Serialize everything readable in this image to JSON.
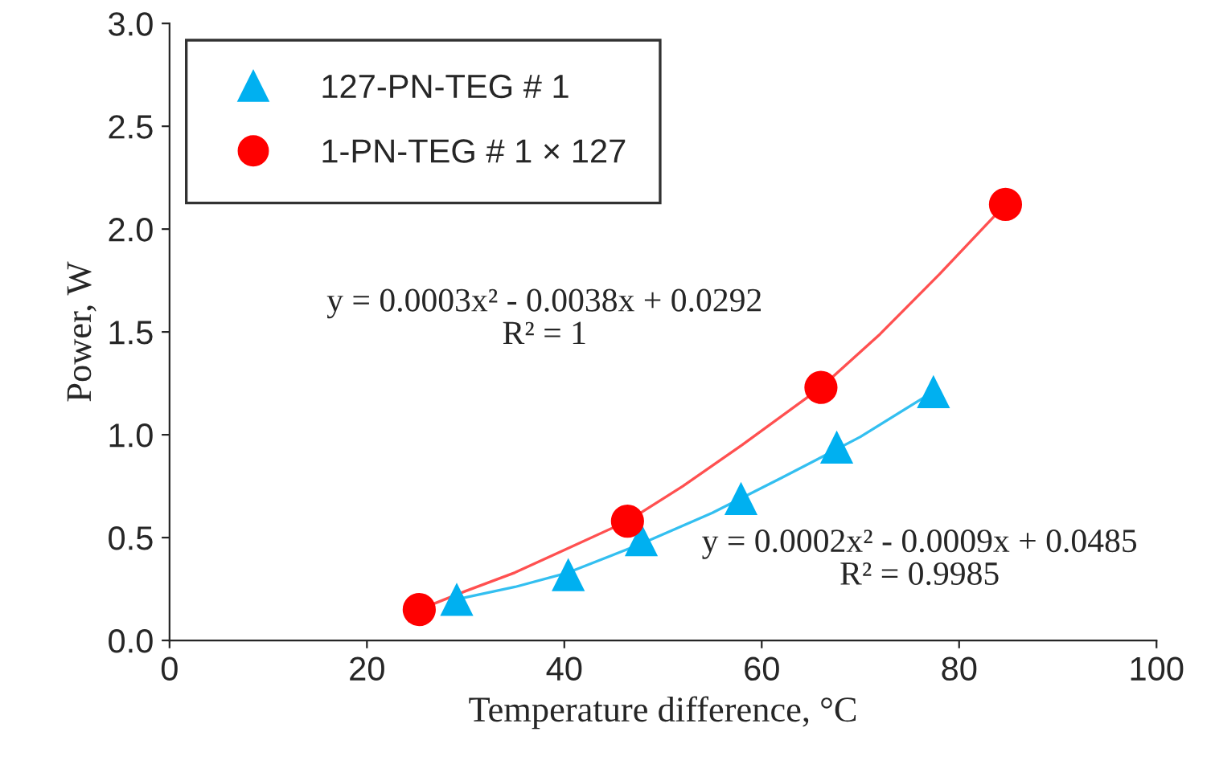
{
  "chart_data": {
    "type": "scatter",
    "xlabel": "Temperature difference, °C",
    "ylabel": "Power, W",
    "xlim": [
      0,
      100
    ],
    "xticks": [
      0,
      20,
      40,
      60,
      80,
      100
    ],
    "ylim": [
      0,
      3.0
    ],
    "yticks": [
      {
        "value": 0,
        "label": "0.0"
      },
      {
        "value": 0.5,
        "label": "0.5"
      },
      {
        "value": 1.0,
        "label": "1.0"
      },
      {
        "value": 1.5,
        "label": "1.5"
      },
      {
        "value": 2.0,
        "label": "2.0"
      },
      {
        "value": 2.5,
        "label": "2.5"
      },
      {
        "value": 3.0,
        "label": "3.0"
      }
    ],
    "grid": false,
    "legend": "top left",
    "series": [
      {
        "name": "127-PN-TEG # 1",
        "marker": "triangle",
        "color": "#00b0f0",
        "x": [
          29.1,
          40.4,
          47.8,
          57.9,
          67.6,
          77.4
        ],
        "values": [
          0.2,
          0.32,
          0.49,
          0.69,
          0.94,
          1.21
        ]
      },
      {
        "name": "1-PN-TEG # 1 × 127",
        "marker": "circle",
        "color": "#ff0000",
        "x": [
          25.3,
          46.4,
          66.0,
          84.7
        ],
        "values": [
          0.15,
          0.58,
          1.23,
          2.12
        ]
      },
      {
        "type": "line",
        "marker": "none",
        "color": "#33bff0",
        "x": [
          29.1,
          35,
          40.4,
          47.8,
          55,
          62,
          70,
          77.4
        ],
        "values": [
          0.2,
          0.26,
          0.33,
          0.47,
          0.62,
          0.79,
          0.99,
          1.21
        ]
      },
      {
        "type": "line",
        "marker": "none",
        "color": "#ff5050",
        "x": [
          25.3,
          30,
          35,
          40,
          46.4,
          52,
          58,
          66.0,
          72,
          78,
          84.7
        ],
        "values": [
          0.15,
          0.24,
          0.33,
          0.44,
          0.58,
          0.75,
          0.95,
          1.23,
          1.49,
          1.78,
          2.12
        ]
      }
    ],
    "annotations": [
      "y = 0.0003x² - 0.0038x + 0.0292\nR² = 1",
      "y = 0.0002x² - 0.0009x + 0.0485\nR² = 0.9985"
    ]
  }
}
